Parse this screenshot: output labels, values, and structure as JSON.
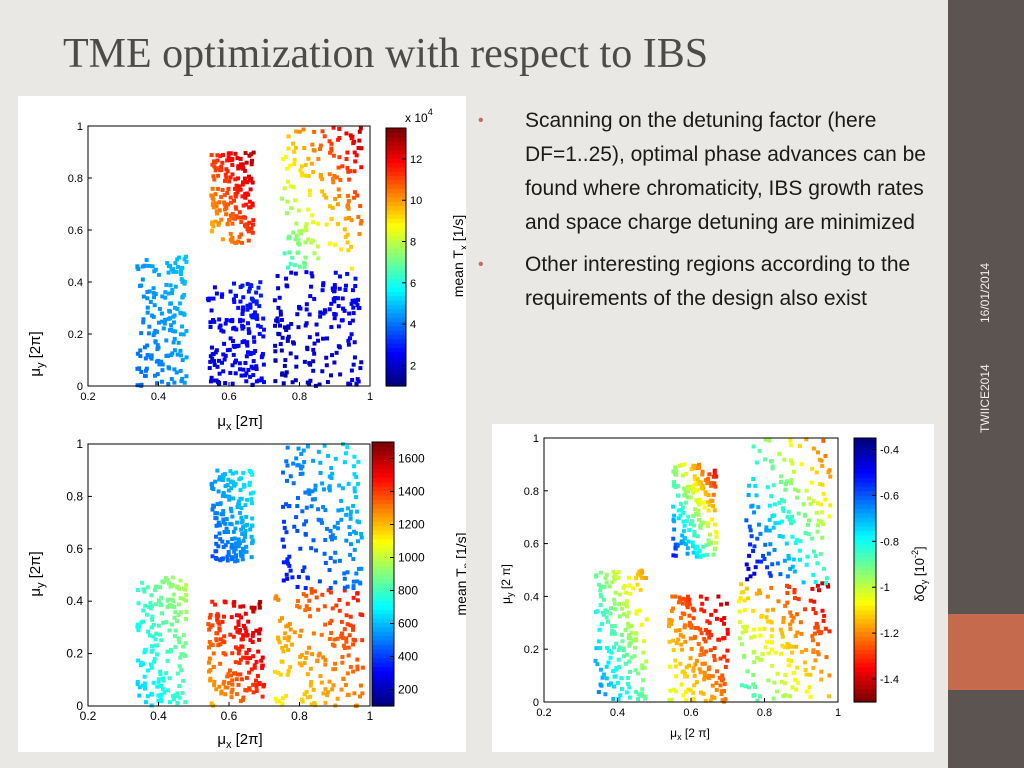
{
  "slide": {
    "title": "TME optimization with respect to IBS",
    "date": "16/01/2014",
    "event": "TWIICE2014",
    "colors": {
      "background": "#e9e8e4",
      "sidebar": "#5b5450",
      "accent": "#c56a4c",
      "title": "#4b4b49"
    }
  },
  "bullets": [
    "Scanning on the detuning factor (here DF=1..25),  optimal phase advances can be found where chromaticity, IBS growth rates and space charge detuning are minimized",
    "Other interesting regions according to the requirements of the design also exist"
  ],
  "chart_data": [
    {
      "type": "scatter",
      "xlabel": "μ_x [2π]",
      "ylabel": "μ_y [2π]",
      "xlim": [
        0.2,
        1
      ],
      "ylim": [
        0,
        1
      ],
      "xticks": [
        "0.2",
        "0.4",
        "0.6",
        "0.8",
        "1"
      ],
      "yticks": [
        "0",
        "0.2",
        "0.4",
        "0.6",
        "0.8",
        "1"
      ],
      "colorbar": {
        "label": "mean T_x [1/s]",
        "multiplier": "x 10^4",
        "ticks": [
          "2",
          "4",
          "6",
          "8",
          "10",
          "12"
        ],
        "range": [
          1,
          13.5
        ],
        "reversed": false
      },
      "regions": [
        {
          "x": [
            0.34,
            0.48
          ],
          "y": [
            0.0,
            0.5
          ],
          "value": [
            3.8,
            5.0
          ]
        },
        {
          "x": [
            0.54,
            0.7
          ],
          "y": [
            0.0,
            0.4
          ],
          "value": [
            2.0,
            3.0
          ]
        },
        {
          "x": [
            0.73,
            0.98
          ],
          "y": [
            0.0,
            0.45
          ],
          "value": [
            1.5,
            2.8
          ]
        },
        {
          "x": [
            0.55,
            0.67
          ],
          "y": [
            0.55,
            0.9
          ],
          "value": [
            9.5,
            13.0
          ]
        },
        {
          "x": [
            0.75,
            0.98
          ],
          "y": [
            0.45,
            1.0
          ],
          "value": [
            6.0,
            13.0
          ]
        }
      ]
    },
    {
      "type": "scatter",
      "xlabel": "μ_x [2π]",
      "ylabel": "μ_y [2π]",
      "xlim": [
        0.2,
        1
      ],
      "ylim": [
        0,
        1
      ],
      "xticks": [
        "0.2",
        "0.4",
        "0.6",
        "0.8",
        "1"
      ],
      "yticks": [
        "0",
        "0.2",
        "0.4",
        "0.6",
        "0.8",
        "1"
      ],
      "colorbar": {
        "label": "mean T_p [1/s]",
        "multiplier": "",
        "ticks": [
          "200",
          "400",
          "600",
          "800",
          "1000",
          "1200",
          "1400",
          "1600"
        ],
        "range": [
          100,
          1700
        ],
        "reversed": false
      },
      "regions": [
        {
          "x": [
            0.34,
            0.48
          ],
          "y": [
            0.0,
            0.5
          ],
          "value": [
            600,
            1000
          ]
        },
        {
          "x": [
            0.54,
            0.7
          ],
          "y": [
            0.0,
            0.4
          ],
          "value": [
            1200,
            1650
          ]
        },
        {
          "x": [
            0.73,
            0.98
          ],
          "y": [
            0.0,
            0.45
          ],
          "value": [
            1100,
            1500
          ]
        },
        {
          "x": [
            0.55,
            0.67
          ],
          "y": [
            0.55,
            0.9
          ],
          "value": [
            400,
            700
          ]
        },
        {
          "x": [
            0.75,
            0.98
          ],
          "y": [
            0.45,
            1.0
          ],
          "value": [
            300,
            700
          ]
        }
      ]
    },
    {
      "type": "scatter",
      "xlabel": "μ_x [2 π]",
      "ylabel": "μ_y [2 π]",
      "xlim": [
        0.2,
        1
      ],
      "ylim": [
        0,
        1
      ],
      "xticks": [
        "0.2",
        "0.4",
        "0.6",
        "0.8",
        "1"
      ],
      "yticks": [
        "0",
        "0.2",
        "0.4",
        "0.6",
        "0.8",
        "1"
      ],
      "colorbar": {
        "label": "δQ_y [10^-2]",
        "multiplier": "",
        "ticks": [
          "-0.4",
          "-0.6",
          "-0.8",
          "-1",
          "-1.2",
          "-1.4"
        ],
        "range": [
          -1.5,
          -0.35
        ],
        "reversed": true
      },
      "regions": [
        {
          "x": [
            0.34,
            0.48
          ],
          "y": [
            0.0,
            0.5
          ],
          "value": [
            -0.6,
            -1.2
          ]
        },
        {
          "x": [
            0.54,
            0.7
          ],
          "y": [
            0.0,
            0.4
          ],
          "value": [
            -1.0,
            -1.45
          ]
        },
        {
          "x": [
            0.73,
            0.98
          ],
          "y": [
            0.0,
            0.45
          ],
          "value": [
            -0.8,
            -1.45
          ]
        },
        {
          "x": [
            0.55,
            0.67
          ],
          "y": [
            0.55,
            0.9
          ],
          "value": [
            -0.5,
            -1.4
          ]
        },
        {
          "x": [
            0.75,
            0.98
          ],
          "y": [
            0.45,
            1.0
          ],
          "value": [
            -0.4,
            -1.3
          ]
        }
      ]
    }
  ]
}
